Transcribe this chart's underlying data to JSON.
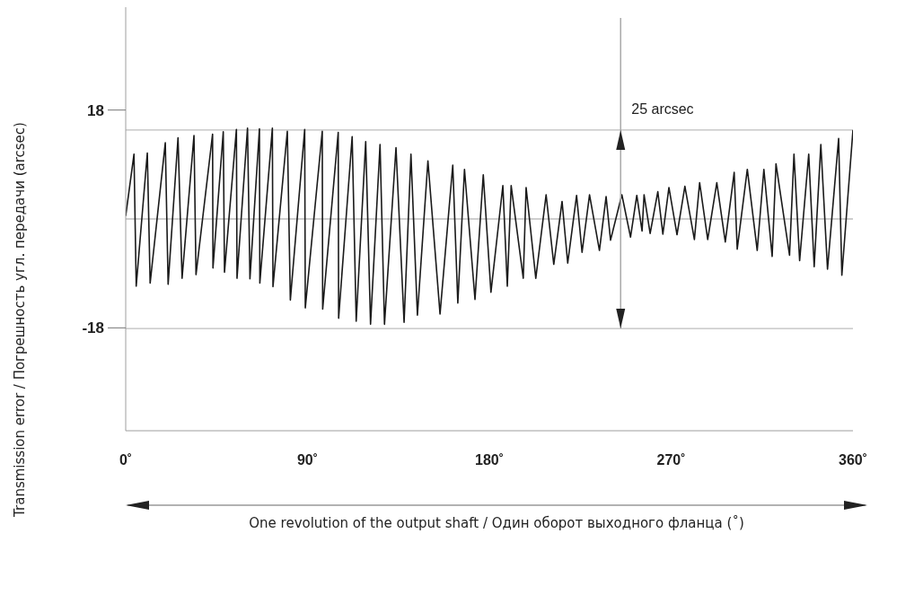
{
  "chart_data": {
    "type": "line",
    "xlabel": "One revolution of the output shaft  / Один оборот выходного фланца (˚)",
    "ylabel": "Transmission error / Погрешность угл. передачи (arcsec)",
    "xlim": [
      0,
      360
    ],
    "xticks": [
      {
        "value": 0,
        "label": "0˚"
      },
      {
        "value": 90,
        "label": "90˚"
      },
      {
        "value": 180,
        "label": "180˚"
      },
      {
        "value": 270,
        "label": "270˚"
      },
      {
        "value": 360,
        "label": "360˚"
      }
    ],
    "ylim": [
      -35,
      35
    ],
    "yticks": [
      18,
      -18
    ],
    "marker": "none",
    "line_style": "solid",
    "x": [
      0,
      4.1,
      5.2,
      10.7,
      12.1,
      19.6,
      21.0,
      25.9,
      27.9,
      33.8,
      34.8,
      43.0,
      43.2,
      48.3,
      48.9,
      54.8,
      55.1,
      60.3,
      61.5,
      66.2,
      66.4,
      72.6,
      72.9,
      80.0,
      81.5,
      88.6,
      88.9,
      97.3,
      97.5,
      105.2,
      105.4,
      112.1,
      114.1,
      118.8,
      121.2,
      125.9,
      128.1,
      133.8,
      137.8,
      141.2,
      144.4,
      149.6,
      155.6,
      161.9,
      164.4,
      167.7,
      172.9,
      177.0,
      180.8,
      186.7,
      188.9,
      190.8,
      196.8,
      198.2,
      203.0,
      208.1,
      211.9,
      216.0,
      218.8,
      223.2,
      225.9,
      229.6,
      234.5,
      237.8,
      240.0,
      245.6,
      249.9,
      253.0,
      255.6,
      256.6,
      259.6,
      263.4,
      265.9,
      268.9,
      272.9,
      276.8,
      281.5,
      284.1,
      288.1,
      292.6,
      296.8,
      301.2,
      302.7,
      307.7,
      312.6,
      315.9,
      320.0,
      321.9,
      328.6,
      330.8,
      333.6,
      338.1,
      340.8,
      344.1,
      347.4,
      352.9,
      354.5,
      360
    ],
    "series": [
      {
        "color": "#1a1a1a",
        "values": [
          0.5,
          10.7,
          -11.1,
          10.9,
          -10.6,
          12.6,
          -10.8,
          13.4,
          -9.8,
          13.8,
          -9.2,
          14.0,
          -8.1,
          14.4,
          -8.8,
          14.8,
          -9.8,
          15.0,
          -9.9,
          14.9,
          -10.6,
          15.0,
          -11.2,
          14.5,
          -13.4,
          14.8,
          -14.7,
          14.5,
          -14.9,
          14.3,
          -16.4,
          13.6,
          -16.9,
          12.8,
          -17.4,
          12.3,
          -17.4,
          11.8,
          -17.1,
          10.7,
          -15.9,
          9.6,
          -15.7,
          8.9,
          -13.9,
          8.2,
          -13.3,
          7.3,
          -12.1,
          5.5,
          -11.1,
          5.5,
          -9.8,
          5.2,
          -9.8,
          4.0,
          -7.5,
          2.9,
          -7.3,
          3.9,
          -5.5,
          4.0,
          -5.2,
          3.7,
          -3.5,
          4.0,
          -3.0,
          3.9,
          -2.0,
          4.0,
          -2.4,
          4.5,
          -2.5,
          5.2,
          -2.6,
          5.4,
          -3.4,
          6.0,
          -3.4,
          6.0,
          -3.8,
          7.7,
          -5.0,
          8.2,
          -5.2,
          8.2,
          -6.2,
          9.1,
          -6.0,
          10.7,
          -6.9,
          10.7,
          -7.9,
          12.3,
          -8.3,
          13.3,
          -9.3,
          14.7
        ]
      }
    ],
    "ref_lines": [
      {
        "axis": "y",
        "value": 14.7,
        "label": null,
        "color": "#bdbdbd"
      },
      {
        "axis": "y",
        "value": -18.1,
        "label": null,
        "color": "#bdbdbd"
      },
      {
        "axis": "y",
        "value": 0,
        "label": null,
        "color": "#9e9e9e"
      }
    ],
    "annotations": [
      {
        "text": "25 arcsec",
        "x": 245,
        "y": 14.7
      }
    ]
  }
}
